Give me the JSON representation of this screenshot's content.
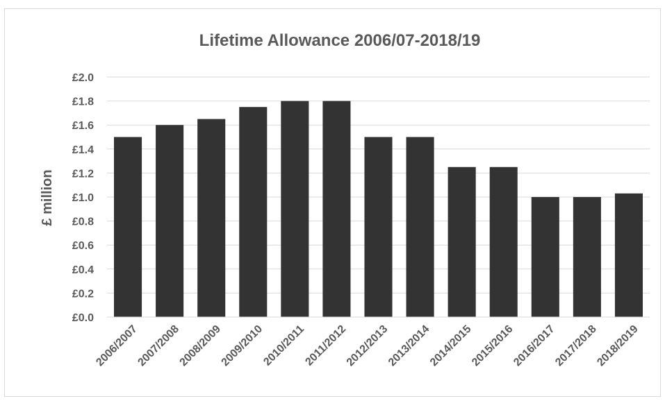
{
  "chart_data": {
    "type": "bar",
    "title": "Lifetime Allowance 2006/07-2018/19",
    "xlabel": "",
    "ylabel": "£ million",
    "categories": [
      "2006/2007",
      "2007/2008",
      "2008/2009",
      "2009/2010",
      "2010/2011",
      "2011/2012",
      "2012/2013",
      "2013/2014",
      "2014/2015",
      "2015/2016",
      "2016/2017",
      "2017/2018",
      "2018/2019"
    ],
    "values": [
      1.5,
      1.6,
      1.65,
      1.75,
      1.8,
      1.8,
      1.5,
      1.5,
      1.25,
      1.25,
      1.0,
      1.0,
      1.03
    ],
    "ylim": [
      0,
      2.0
    ],
    "yticks": [
      0.0,
      0.2,
      0.4,
      0.6,
      0.8,
      1.0,
      1.2,
      1.4,
      1.6,
      1.8,
      2.0
    ],
    "ytick_labels": [
      "£0.0",
      "£0.2",
      "£0.4",
      "£0.6",
      "£0.8",
      "£1.0",
      "£1.2",
      "£1.4",
      "£1.6",
      "£1.8",
      "£2.0"
    ],
    "grid": true,
    "legend": "none",
    "bar_color": "#333333"
  }
}
